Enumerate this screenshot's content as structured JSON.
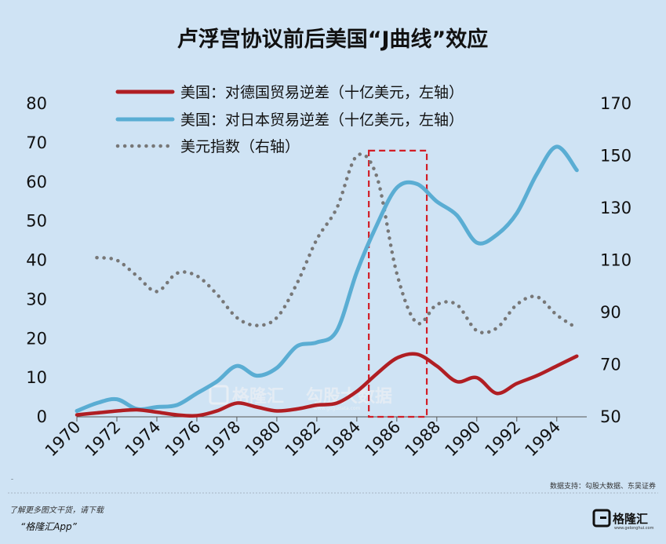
{
  "chart_data": {
    "type": "line",
    "title": "卢浮宫协议前后美国“J曲线”效应",
    "x": [
      1970,
      1971,
      1972,
      1973,
      1974,
      1975,
      1976,
      1977,
      1978,
      1979,
      1980,
      1981,
      1982,
      1983,
      1984,
      1985,
      1986,
      1987,
      1988,
      1989,
      1990,
      1991,
      1992,
      1993,
      1994,
      1995
    ],
    "x_tick_labels": [
      "1970",
      "1972",
      "1974",
      "1976",
      "1978",
      "1980",
      "1982",
      "1984",
      "1986",
      "1988",
      "1990",
      "1992",
      "1994"
    ],
    "x_ticks": [
      1970,
      1972,
      1974,
      1976,
      1978,
      1980,
      1982,
      1984,
      1986,
      1988,
      1990,
      1992,
      1994
    ],
    "xlim": [
      1970,
      1995.5
    ],
    "left_axis": {
      "ylim": [
        0,
        80
      ],
      "ticks": [
        0,
        10,
        20,
        30,
        40,
        50,
        60,
        70,
        80
      ],
      "tick_labels": [
        "0",
        "10",
        "20",
        "30",
        "40",
        "50",
        "60",
        "70",
        "80"
      ]
    },
    "right_axis": {
      "ylim": [
        50,
        170
      ],
      "ticks": [
        50,
        70,
        90,
        110,
        130,
        150,
        170
      ],
      "tick_labels": [
        "50",
        "70",
        "90",
        "110",
        "130",
        "150",
        "170"
      ]
    },
    "series": [
      {
        "name": "美国：对德国贸易逆差（十亿美元，左轴）",
        "axis": "left",
        "style": "solid",
        "color": "#b01e23",
        "values": [
          0.5,
          1.0,
          1.5,
          1.8,
          1.2,
          0.5,
          0.3,
          1.5,
          3.5,
          2.5,
          1.5,
          2.0,
          3.0,
          3.5,
          6.5,
          11.0,
          15.0,
          16.0,
          13.0,
          9.0,
          10.0,
          6.0,
          8.5,
          10.5,
          13.0,
          15.5
        ]
      },
      {
        "name": "美国：对日本贸易逆差（十亿美元，左轴）",
        "axis": "left",
        "style": "solid",
        "color": "#5aadd3",
        "values": [
          1.5,
          3.5,
          4.5,
          2.0,
          2.5,
          3.0,
          6.0,
          9.0,
          13.0,
          10.5,
          12.5,
          18.0,
          19.0,
          22.0,
          37.0,
          49.0,
          58.5,
          59.5,
          55.0,
          51.5,
          44.5,
          46.5,
          52.0,
          62.0,
          69.0,
          63.0
        ]
      },
      {
        "name": "美元指数（右轴）",
        "axis": "right",
        "style": "dotted",
        "color": "#777777",
        "values": [
          null,
          111,
          110,
          104,
          98,
          105,
          104,
          97,
          88,
          85,
          88,
          101,
          118,
          130,
          150,
          142,
          105,
          86,
          93,
          93,
          83,
          84,
          93,
          96,
          89,
          84
        ]
      }
    ],
    "highlight_box": {
      "x_range": [
        1984.6,
        1987.5
      ],
      "y_range": [
        0,
        68
      ],
      "style": "dashed",
      "color": "#d21d26"
    }
  },
  "source_note": "数据支持：勾股大数据、东吴证券",
  "footer": {
    "line1": "了解更多图文干货，请下载",
    "line2": "“格隆汇App”"
  },
  "watermark": {
    "brand": "格隆汇",
    "brand2": "勾股大数据",
    "url": "www.gogudata.com"
  },
  "logo": {
    "text": "格隆汇",
    "url": "www.gelonghui.com"
  }
}
